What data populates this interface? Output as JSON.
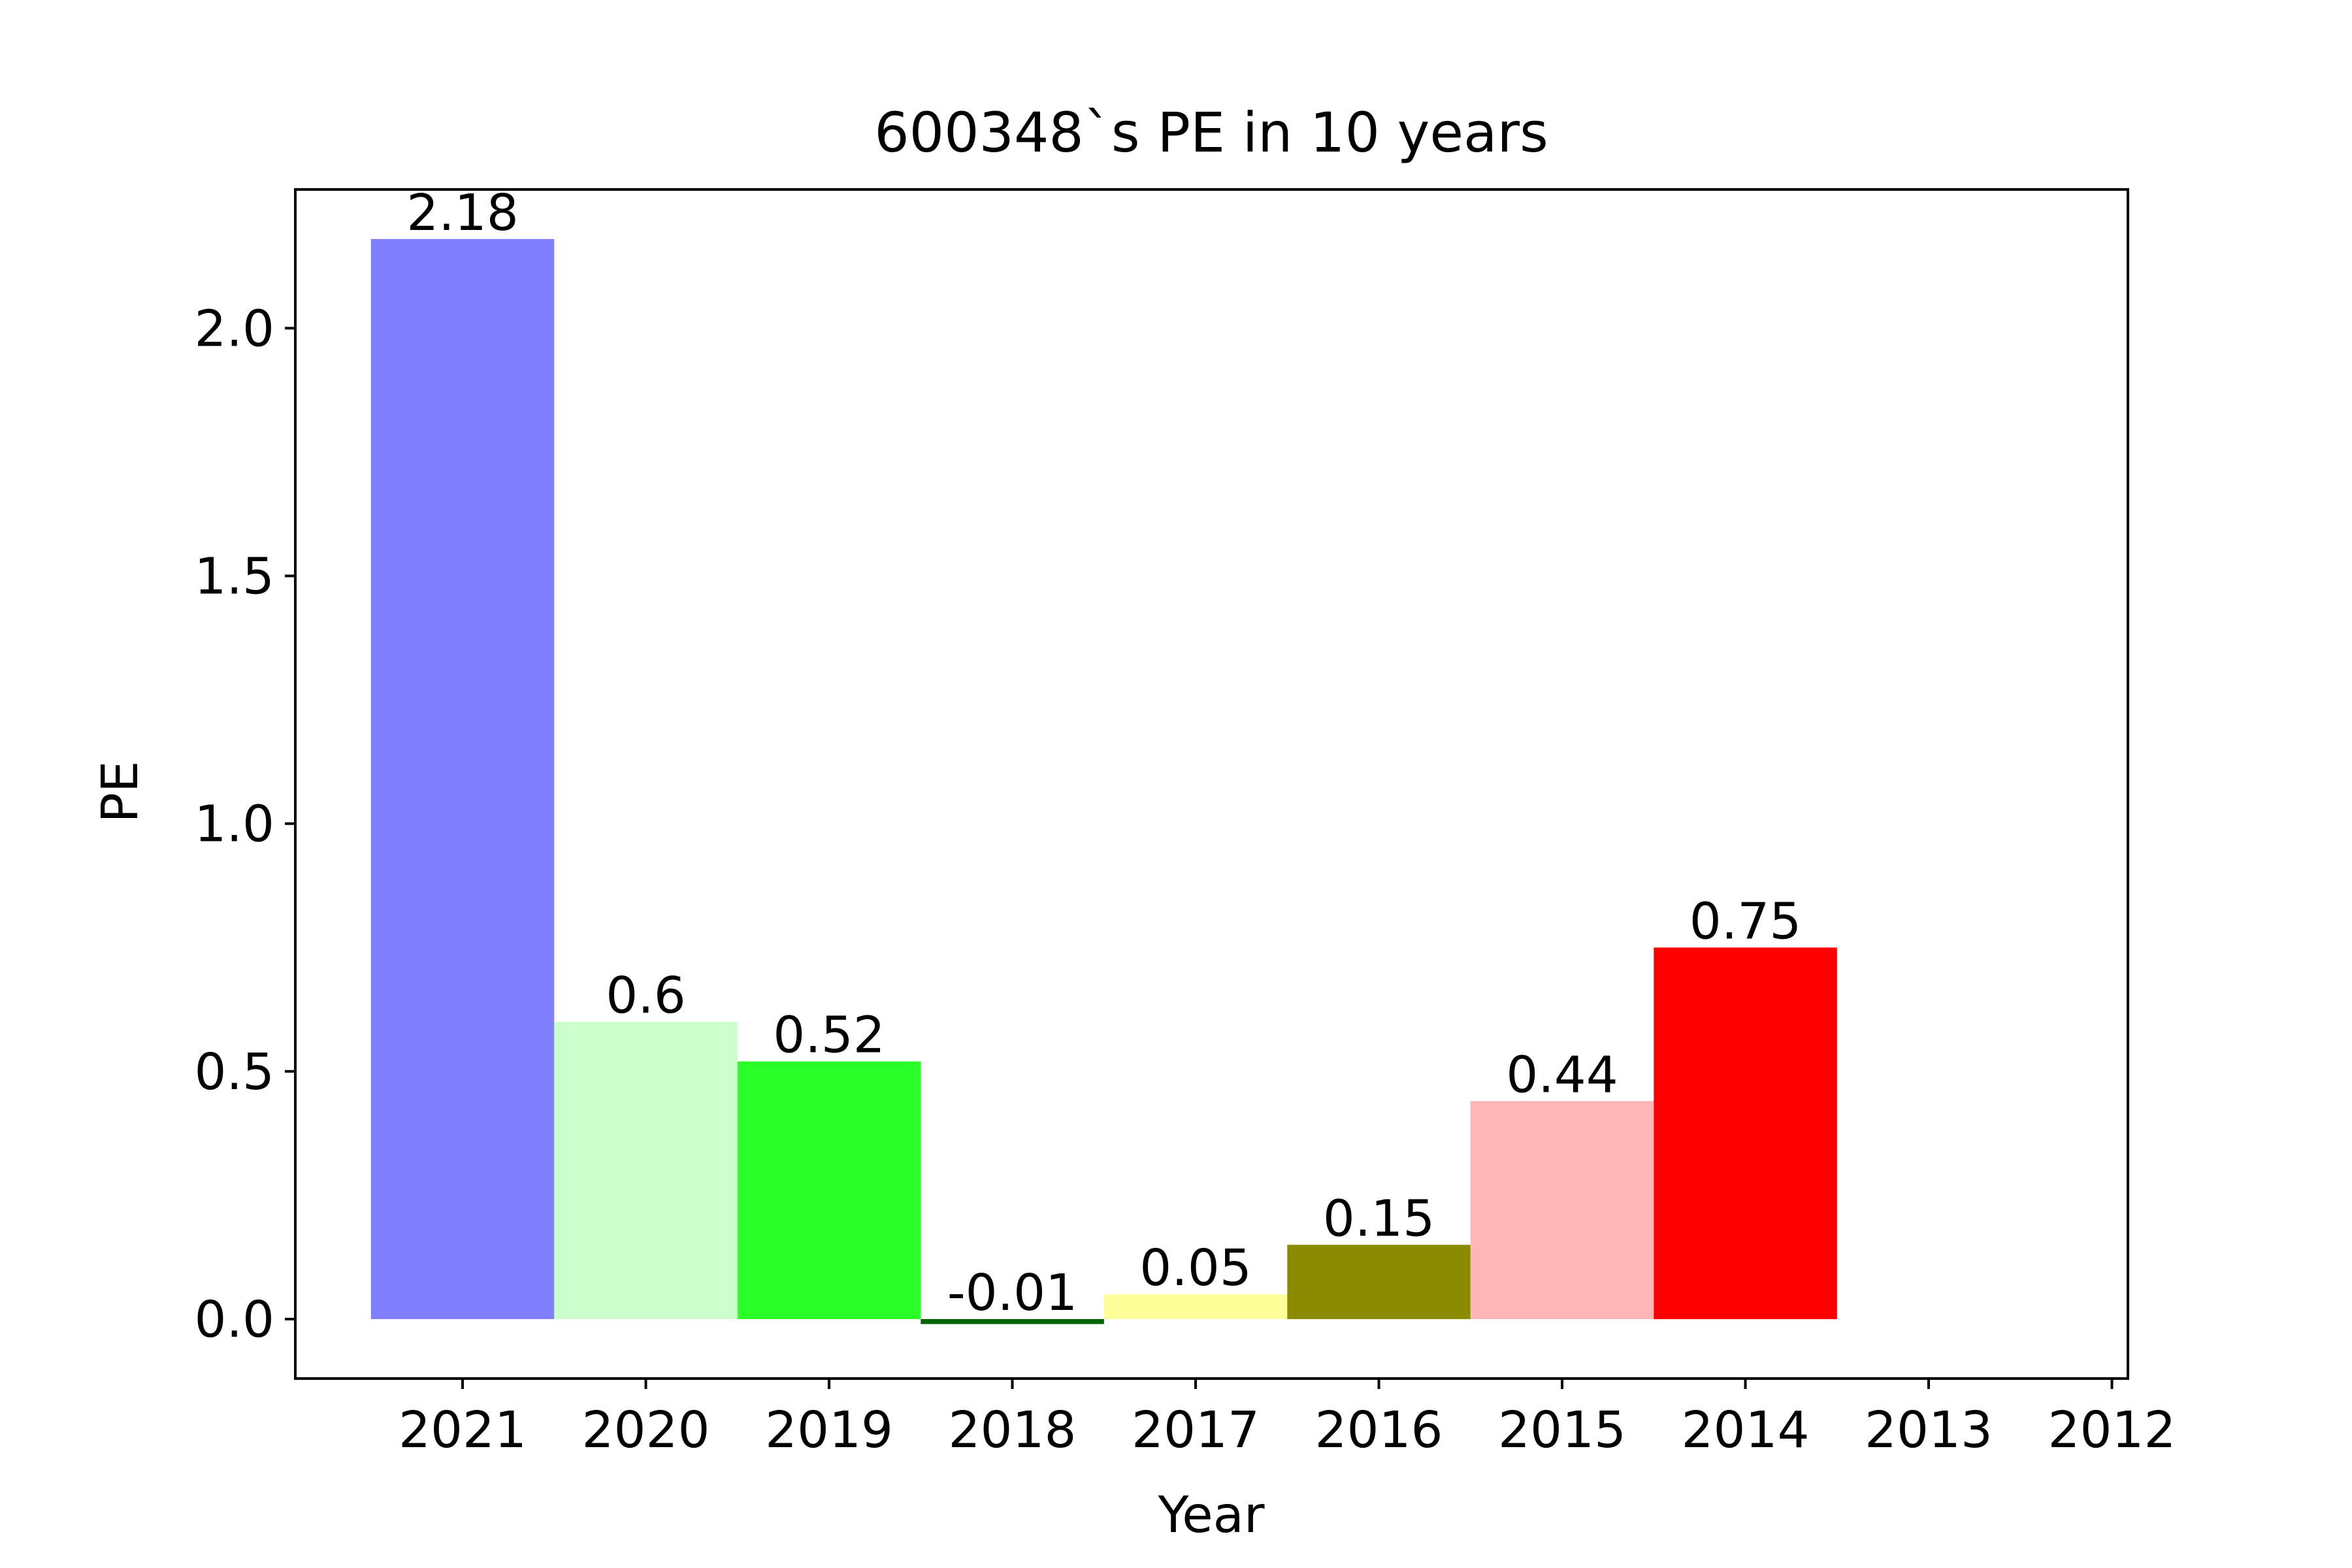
{
  "chart_data": {
    "type": "bar",
    "title": "600348`s PE in 10 years",
    "xlabel": "Year",
    "ylabel": "PE",
    "categories": [
      "2021",
      "2020",
      "2019",
      "2018",
      "2017",
      "2016",
      "2015",
      "2014",
      "2013",
      "2012"
    ],
    "values": [
      2.18,
      0.6,
      0.52,
      -0.01,
      0.05,
      0.15,
      0.44,
      0.75,
      null,
      null
    ],
    "value_labels": [
      "2.18",
      "0.6",
      "0.52",
      "-0.01",
      "0.05",
      "0.15",
      "0.44",
      "0.75",
      "",
      ""
    ],
    "bar_colors": [
      "#8080ff",
      "#ccffcc",
      "#2aff2a",
      "#006400",
      "#ffff99",
      "#8b8b00",
      "#ffb6b6",
      "#ff0000",
      "",
      ""
    ],
    "ylim": [
      -0.12,
      2.28
    ],
    "yticks": [
      0.0,
      0.5,
      1.0,
      1.5,
      2.0
    ],
    "ytick_labels": [
      "0.0",
      "0.5",
      "1.0",
      "1.5",
      "2.0"
    ],
    "grid": false,
    "legend": "none"
  }
}
